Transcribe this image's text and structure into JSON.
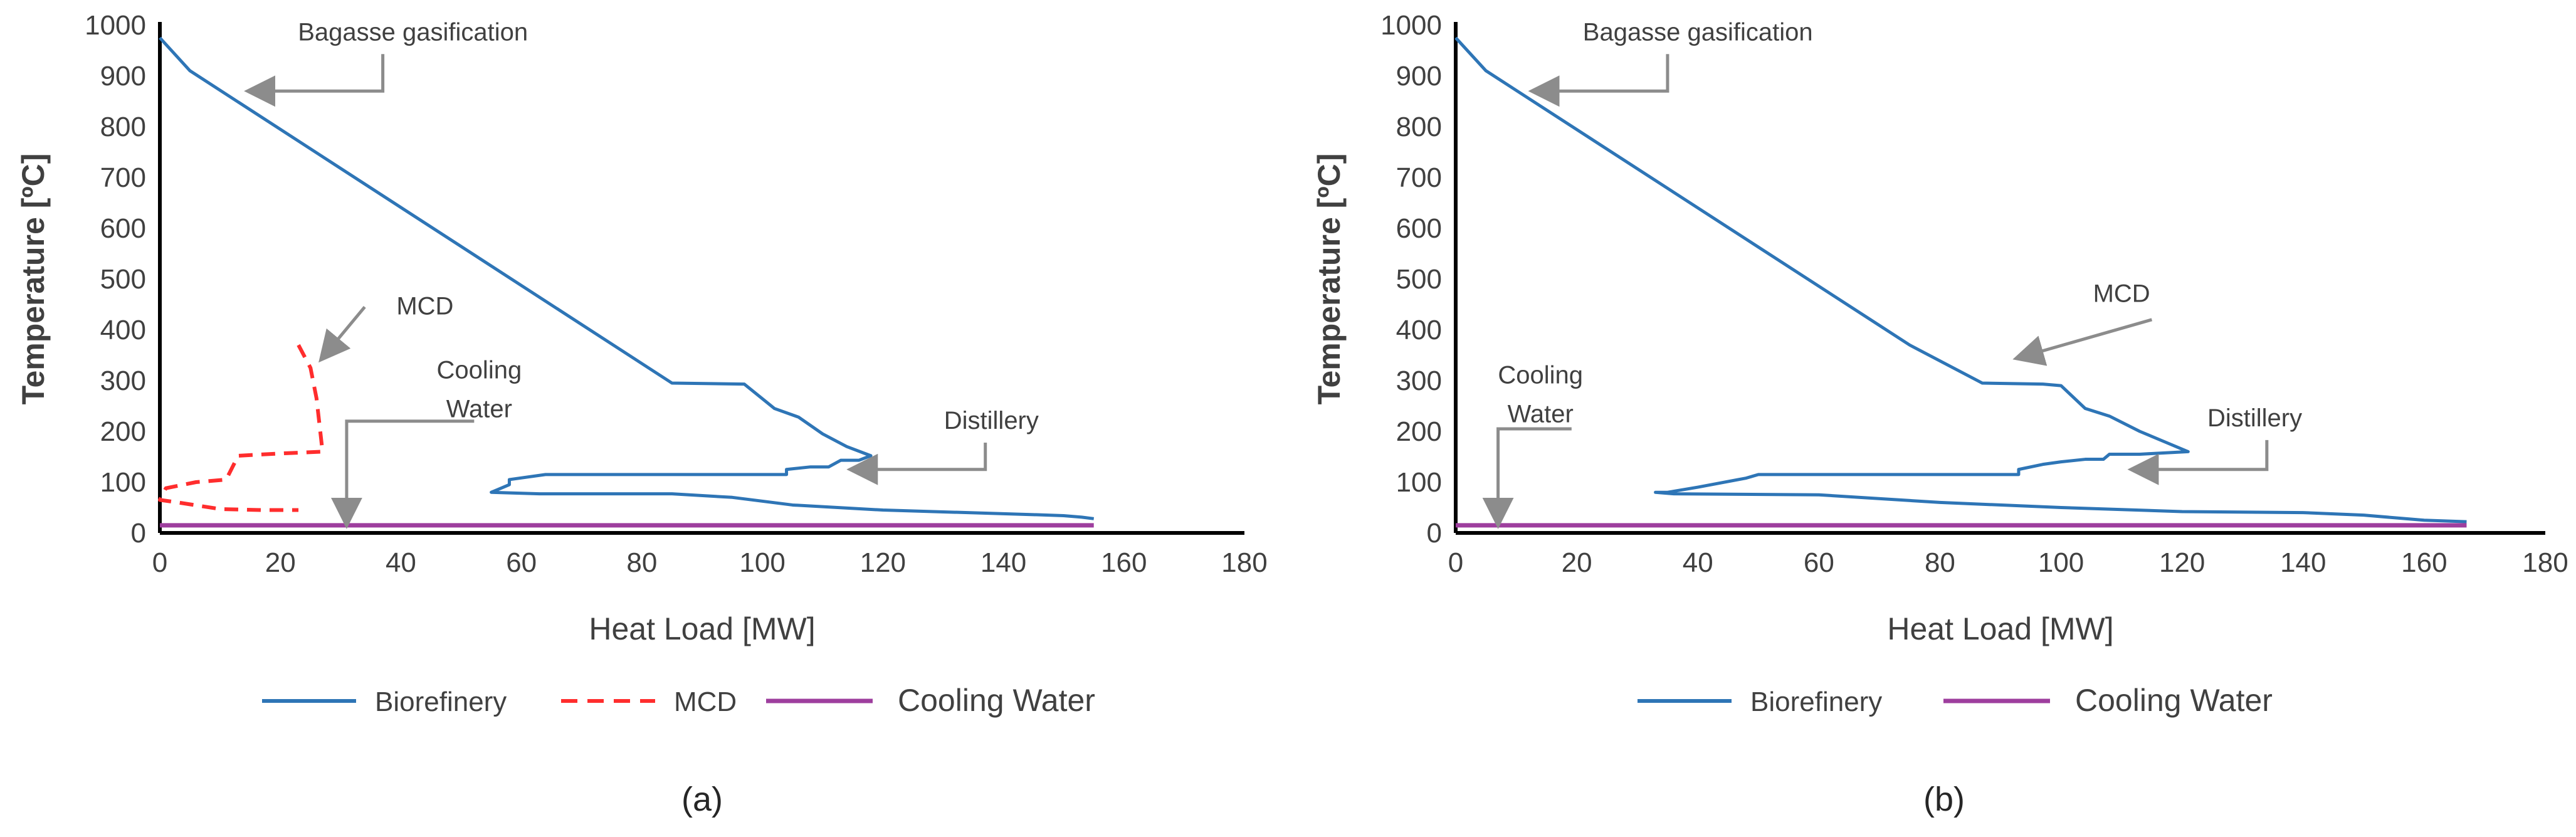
{
  "chart_data": [
    {
      "type": "line",
      "caption": "(a)",
      "xlabel": "Heat Load [MW]",
      "ylabel": "Temperature [ºC]",
      "xlim": [
        0,
        180
      ],
      "ylim": [
        0,
        1000
      ],
      "xticks": [
        "0",
        "20",
        "40",
        "60",
        "80",
        "100",
        "120",
        "140",
        "160",
        "180"
      ],
      "yticks": [
        "0",
        "100",
        "200",
        "300",
        "400",
        "500",
        "600",
        "700",
        "800",
        "900",
        "1000"
      ],
      "series": [
        {
          "name": "Biorefinery",
          "color": "#2E75B6",
          "dash": "solid",
          "x": [
            0,
            5,
            85,
            97,
            102,
            106,
            110,
            114,
            118,
            116,
            113,
            111,
            108,
            104,
            104,
            80,
            64,
            58,
            58,
            56,
            55,
            63,
            85,
            95,
            105,
            120,
            145,
            150,
            153,
            155
          ],
          "y": [
            975,
            910,
            295,
            293,
            245,
            228,
            195,
            170,
            152,
            143,
            143,
            130,
            130,
            125,
            115,
            115,
            115,
            105,
            95,
            85,
            80,
            77,
            77,
            70,
            55,
            45,
            36,
            34,
            31,
            28
          ]
        },
        {
          "name": "MCD",
          "color": "#FF2D2D",
          "dash": "dashed",
          "x": [
            23,
            25,
            26,
            27,
            21,
            13,
            11,
            6,
            1,
            0,
            3,
            10,
            17,
            23
          ],
          "y": [
            370,
            325,
            265,
            160,
            157,
            152,
            105,
            100,
            88,
            65,
            60,
            47,
            45,
            45
          ]
        },
        {
          "name": "Cooling Water",
          "color": "#9E3E9E",
          "dash": "solid",
          "x": [
            0,
            155
          ],
          "y": [
            15,
            15
          ]
        }
      ],
      "annotations": [
        {
          "text": "Bagasse gasification",
          "label_at": [
            42,
            970
          ],
          "arrow_from": [
            37,
            870
          ],
          "arrow_to": [
            15,
            870
          ]
        },
        {
          "text": "MCD",
          "label_at": [
            44,
            430
          ],
          "arrow_from": [
            34,
            445
          ],
          "arrow_to": [
            27,
            345
          ]
        },
        {
          "lines": [
            "Cooling",
            "Water"
          ],
          "label_at": [
            53,
            270
          ],
          "arrow_from": [
            48,
            220
          ],
          "arrow_to": [
            31,
            20
          ]
        },
        {
          "text": "Distillery",
          "label_at": [
            138,
            205
          ],
          "arrow_from": [
            137,
            125
          ],
          "arrow_to": [
            115,
            125
          ]
        }
      ],
      "legend": [
        "Biorefinery",
        "MCD",
        "Cooling Water"
      ]
    },
    {
      "type": "line",
      "caption": "(b)",
      "xlabel": "Heat Load [MW]",
      "ylabel": "Temperature [ºC]",
      "xlim": [
        0,
        180
      ],
      "ylim": [
        0,
        1000
      ],
      "xticks": [
        "0",
        "20",
        "40",
        "60",
        "80",
        "100",
        "120",
        "140",
        "160",
        "180"
      ],
      "yticks": [
        "0",
        "100",
        "200",
        "300",
        "400",
        "500",
        "600",
        "700",
        "800",
        "900",
        "1000"
      ],
      "series": [
        {
          "name": "Biorefinery",
          "color": "#2E75B6",
          "dash": "solid",
          "x": [
            0,
            5,
            75,
            87,
            97,
            100,
            104,
            108,
            113,
            118,
            121,
            113,
            108,
            107,
            104,
            100,
            97,
            93,
            93,
            50,
            48,
            40,
            35,
            33,
            36,
            60,
            80,
            100,
            120,
            140,
            150,
            160,
            167
          ],
          "y": [
            975,
            910,
            370,
            295,
            293,
            290,
            245,
            230,
            200,
            175,
            160,
            155,
            155,
            145,
            145,
            140,
            135,
            125,
            115,
            115,
            108,
            90,
            80,
            80,
            77,
            75,
            60,
            50,
            42,
            40,
            35,
            25,
            22
          ]
        },
        {
          "name": "Cooling Water",
          "color": "#9E3E9E",
          "dash": "solid",
          "x": [
            0,
            167
          ],
          "y": [
            15,
            15
          ]
        }
      ],
      "annotations": [
        {
          "text": "Bagasse gasification",
          "label_at": [
            40,
            970
          ],
          "arrow_from": [
            35,
            870
          ],
          "arrow_to": [
            13,
            870
          ]
        },
        {
          "text": "MCD",
          "label_at": [
            110,
            455
          ],
          "arrow_from": [
            115,
            420
          ],
          "arrow_to": [
            93,
            345
          ]
        },
        {
          "lines": [
            "Cooling",
            "Water"
          ],
          "label_at": [
            14,
            260
          ],
          "arrow_from": [
            15,
            205
          ],
          "arrow_to": [
            7,
            20
          ]
        },
        {
          "text": "Distillery",
          "label_at": [
            132,
            210
          ],
          "arrow_from": [
            134,
            125
          ],
          "arrow_to": [
            112,
            125
          ]
        }
      ],
      "legend": [
        "Biorefinery",
        "Cooling Water"
      ]
    }
  ]
}
